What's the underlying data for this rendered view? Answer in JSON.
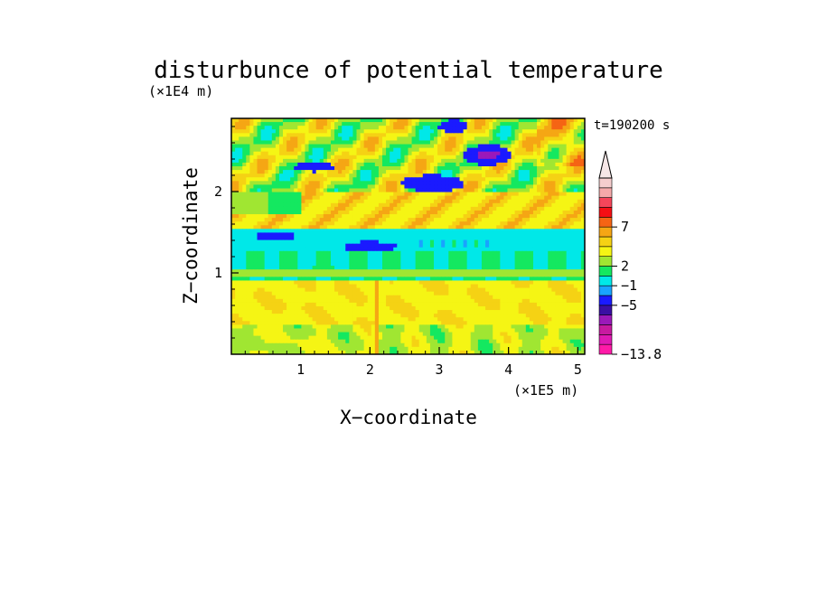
{
  "chart_data": {
    "type": "heatmap",
    "title": "disturbunce of potential temperature",
    "xlabel": "X−coordinate",
    "ylabel": "Z−coordinate",
    "x_unit": "(×1E5 m)",
    "y_unit": "(×1E4 m)",
    "time_label": "t=190200 s",
    "xlim": [
      0,
      5.1
    ],
    "ylim": [
      0,
      2.9
    ],
    "x_ticks": [
      {
        "value": 1,
        "label": "1"
      },
      {
        "value": 2,
        "label": "2"
      },
      {
        "value": 3,
        "label": "3"
      },
      {
        "value": 4,
        "label": "4"
      },
      {
        "value": 5,
        "label": "5"
      }
    ],
    "y_ticks": [
      {
        "value": 1,
        "label": "1"
      },
      {
        "value": 2,
        "label": "2"
      }
    ],
    "colorbar": {
      "colors": [
        "#ff1aa8",
        "#e01ab4",
        "#c81aa0",
        "#9b19b9",
        "#3a0fa3",
        "#1a1aff",
        "#19a3ff",
        "#00e8e8",
        "#14e860",
        "#a0e632",
        "#f5f514",
        "#f5d214",
        "#f5a614",
        "#f56414",
        "#f50f14",
        "#f5465a",
        "#f5aaaa",
        "#f5cdcd"
      ],
      "labels": [
        {
          "value": "7",
          "at": 13
        },
        {
          "value": "2",
          "at": 9
        },
        {
          "value": "−1",
          "at": 7
        },
        {
          "value": "−5",
          "at": 5
        },
        {
          "value": "−13.8",
          "at": 0
        }
      ],
      "extend_max": true
    },
    "field_description_values": {
      "grid_x_count": 96,
      "grid_z_count": 64
    }
  }
}
